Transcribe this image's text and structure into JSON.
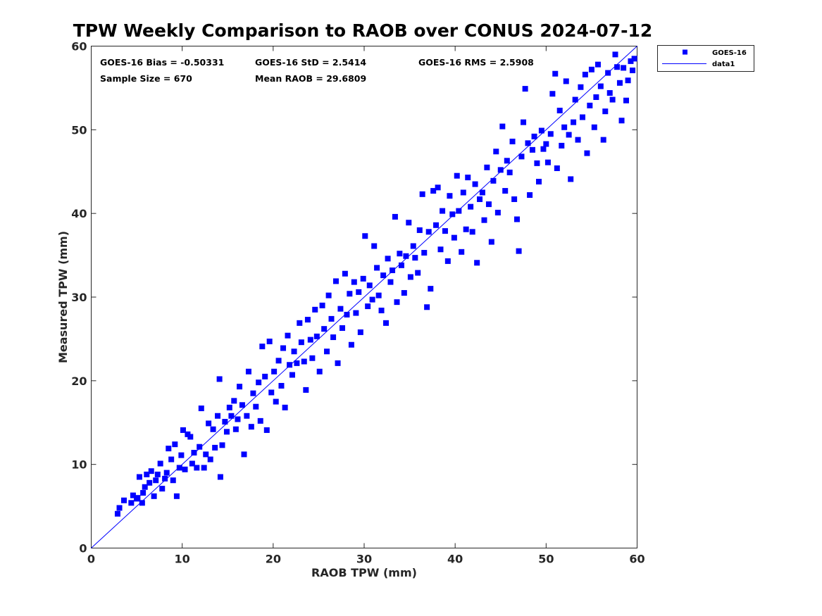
{
  "chart_data": {
    "type": "scatter",
    "title": "TPW Weekly Comparison to RAOB over CONUS 2024-07-12",
    "xlabel": "RAOB TPW (mm)",
    "ylabel": "Measured TPW (mm)",
    "xlim": [
      0,
      60
    ],
    "ylim": [
      0,
      60
    ],
    "xticks": [
      0,
      10,
      20,
      30,
      40,
      50,
      60
    ],
    "yticks": [
      0,
      10,
      20,
      30,
      40,
      50,
      60
    ],
    "grid": false,
    "legend_position": "outside-top-right",
    "stats": {
      "bias": "GOES-16 Bias = -0.50331",
      "std": "GOES-16 StD = 2.5414",
      "rms": "GOES-16 RMS = 2.5908",
      "sample": "Sample Size = 670",
      "mean": "Mean RAOB = 29.6809"
    },
    "series": [
      {
        "name": "GOES-16",
        "marker": "square",
        "color": "#0000ff",
        "note": "670 points along y≈x; a representative subset of estimated values is listed",
        "points": [
          [
            2.9,
            4.1
          ],
          [
            3.1,
            4.8
          ],
          [
            3.6,
            5.7
          ],
          [
            4.4,
            5.4
          ],
          [
            4.6,
            6.3
          ],
          [
            5.0,
            5.9
          ],
          [
            5.1,
            6.0
          ],
          [
            5.3,
            8.5
          ],
          [
            5.6,
            5.4
          ],
          [
            5.7,
            6.6
          ],
          [
            5.9,
            7.3
          ],
          [
            6.1,
            8.8
          ],
          [
            6.4,
            7.8
          ],
          [
            6.6,
            9.2
          ],
          [
            6.9,
            6.2
          ],
          [
            7.1,
            8.1
          ],
          [
            7.3,
            8.8
          ],
          [
            7.6,
            10.1
          ],
          [
            7.8,
            7.1
          ],
          [
            8.1,
            8.3
          ],
          [
            8.3,
            9.0
          ],
          [
            8.5,
            11.9
          ],
          [
            8.8,
            10.6
          ],
          [
            9.0,
            8.1
          ],
          [
            9.2,
            12.4
          ],
          [
            9.4,
            6.2
          ],
          [
            9.7,
            9.6
          ],
          [
            9.9,
            11.1
          ],
          [
            10.1,
            14.1
          ],
          [
            10.3,
            9.4
          ],
          [
            10.6,
            13.6
          ],
          [
            10.9,
            13.3
          ],
          [
            11.1,
            10.1
          ],
          [
            11.3,
            11.4
          ],
          [
            11.6,
            9.6
          ],
          [
            11.9,
            12.1
          ],
          [
            12.1,
            16.7
          ],
          [
            12.4,
            9.6
          ],
          [
            12.6,
            11.2
          ],
          [
            12.9,
            14.9
          ],
          [
            13.1,
            10.6
          ],
          [
            13.4,
            14.2
          ],
          [
            13.6,
            12.0
          ],
          [
            13.9,
            15.8
          ],
          [
            14.1,
            20.2
          ],
          [
            14.2,
            8.5
          ],
          [
            14.4,
            12.3
          ],
          [
            14.7,
            15.1
          ],
          [
            14.9,
            13.9
          ],
          [
            15.2,
            16.8
          ],
          [
            15.4,
            15.8
          ],
          [
            15.7,
            17.6
          ],
          [
            15.9,
            14.2
          ],
          [
            16.1,
            15.4
          ],
          [
            16.3,
            19.3
          ],
          [
            16.6,
            17.1
          ],
          [
            16.8,
            11.2
          ],
          [
            17.1,
            15.8
          ],
          [
            17.3,
            21.1
          ],
          [
            17.6,
            14.5
          ],
          [
            17.8,
            18.5
          ],
          [
            18.1,
            16.9
          ],
          [
            18.4,
            19.8
          ],
          [
            18.6,
            15.2
          ],
          [
            18.8,
            24.1
          ],
          [
            19.1,
            20.5
          ],
          [
            19.3,
            14.1
          ],
          [
            19.6,
            24.7
          ],
          [
            19.8,
            18.6
          ],
          [
            20.1,
            21.1
          ],
          [
            20.3,
            17.5
          ],
          [
            20.6,
            22.4
          ],
          [
            20.9,
            19.4
          ],
          [
            21.1,
            23.9
          ],
          [
            21.3,
            16.8
          ],
          [
            21.6,
            25.4
          ],
          [
            21.8,
            21.9
          ],
          [
            22.1,
            20.7
          ],
          [
            22.3,
            23.5
          ],
          [
            22.6,
            22.1
          ],
          [
            22.9,
            26.9
          ],
          [
            23.1,
            24.6
          ],
          [
            23.4,
            22.3
          ],
          [
            23.6,
            18.9
          ],
          [
            23.8,
            27.3
          ],
          [
            24.1,
            24.9
          ],
          [
            24.3,
            22.7
          ],
          [
            24.6,
            28.5
          ],
          [
            24.8,
            25.3
          ],
          [
            25.1,
            21.1
          ],
          [
            25.4,
            29.0
          ],
          [
            25.6,
            26.2
          ],
          [
            25.9,
            23.5
          ],
          [
            26.1,
            30.2
          ],
          [
            26.4,
            27.4
          ],
          [
            26.6,
            25.2
          ],
          [
            26.9,
            31.9
          ],
          [
            27.1,
            22.1
          ],
          [
            27.4,
            28.6
          ],
          [
            27.6,
            26.3
          ],
          [
            27.9,
            32.8
          ],
          [
            28.1,
            27.9
          ],
          [
            28.4,
            30.4
          ],
          [
            28.6,
            24.3
          ],
          [
            28.9,
            31.8
          ],
          [
            29.1,
            28.1
          ],
          [
            29.4,
            30.6
          ],
          [
            29.6,
            25.8
          ],
          [
            29.9,
            32.2
          ],
          [
            30.1,
            37.3
          ],
          [
            30.4,
            28.9
          ],
          [
            30.6,
            31.4
          ],
          [
            30.9,
            29.7
          ],
          [
            31.1,
            36.1
          ],
          [
            31.4,
            33.5
          ],
          [
            31.6,
            30.2
          ],
          [
            31.9,
            28.4
          ],
          [
            32.1,
            32.6
          ],
          [
            32.4,
            26.9
          ],
          [
            32.6,
            34.6
          ],
          [
            32.9,
            31.8
          ],
          [
            33.1,
            33.2
          ],
          [
            33.4,
            39.6
          ],
          [
            33.6,
            29.4
          ],
          [
            33.9,
            35.2
          ],
          [
            34.1,
            33.8
          ],
          [
            34.4,
            30.5
          ],
          [
            34.6,
            34.9
          ],
          [
            34.9,
            38.9
          ],
          [
            35.1,
            32.4
          ],
          [
            35.4,
            36.1
          ],
          [
            35.6,
            34.7
          ],
          [
            35.9,
            32.9
          ],
          [
            36.1,
            38.0
          ],
          [
            36.4,
            42.3
          ],
          [
            36.6,
            35.3
          ],
          [
            36.9,
            28.8
          ],
          [
            37.1,
            37.8
          ],
          [
            37.3,
            31.0
          ],
          [
            37.6,
            42.7
          ],
          [
            37.9,
            38.6
          ],
          [
            38.1,
            43.1
          ],
          [
            38.4,
            35.7
          ],
          [
            38.6,
            40.3
          ],
          [
            38.9,
            37.9
          ],
          [
            39.2,
            34.3
          ],
          [
            39.4,
            42.1
          ],
          [
            39.7,
            39.9
          ],
          [
            39.9,
            37.1
          ],
          [
            40.2,
            44.5
          ],
          [
            40.4,
            40.3
          ],
          [
            40.7,
            35.4
          ],
          [
            40.9,
            42.5
          ],
          [
            41.2,
            38.1
          ],
          [
            41.4,
            44.3
          ],
          [
            41.7,
            40.8
          ],
          [
            41.9,
            37.8
          ],
          [
            42.2,
            43.5
          ],
          [
            42.4,
            34.1
          ],
          [
            42.7,
            41.7
          ],
          [
            43.0,
            42.5
          ],
          [
            43.2,
            39.2
          ],
          [
            43.5,
            45.5
          ],
          [
            43.7,
            41.1
          ],
          [
            44.0,
            36.6
          ],
          [
            44.2,
            43.9
          ],
          [
            44.5,
            47.4
          ],
          [
            44.7,
            40.1
          ],
          [
            45.0,
            45.2
          ],
          [
            45.2,
            50.4
          ],
          [
            45.5,
            42.7
          ],
          [
            45.7,
            46.3
          ],
          [
            46.0,
            44.9
          ],
          [
            46.3,
            48.6
          ],
          [
            46.5,
            41.7
          ],
          [
            46.8,
            39.3
          ],
          [
            47.0,
            35.5
          ],
          [
            47.3,
            46.8
          ],
          [
            47.5,
            50.9
          ],
          [
            47.7,
            54.9
          ],
          [
            48.0,
            48.4
          ],
          [
            48.2,
            42.2
          ],
          [
            48.5,
            47.6
          ],
          [
            48.7,
            49.2
          ],
          [
            49.0,
            46.0
          ],
          [
            49.2,
            43.8
          ],
          [
            49.5,
            49.9
          ],
          [
            49.7,
            47.7
          ],
          [
            50.0,
            48.3
          ],
          [
            50.2,
            46.1
          ],
          [
            50.5,
            49.5
          ],
          [
            50.7,
            54.3
          ],
          [
            51.0,
            56.7
          ],
          [
            51.2,
            45.4
          ],
          [
            51.5,
            52.3
          ],
          [
            51.7,
            48.1
          ],
          [
            52.0,
            50.3
          ],
          [
            52.2,
            55.8
          ],
          [
            52.5,
            49.4
          ],
          [
            52.7,
            44.1
          ],
          [
            53.0,
            50.9
          ],
          [
            53.2,
            53.6
          ],
          [
            53.5,
            48.8
          ],
          [
            53.8,
            55.1
          ],
          [
            54.0,
            51.5
          ],
          [
            54.3,
            56.6
          ],
          [
            54.5,
            47.2
          ],
          [
            54.8,
            52.9
          ],
          [
            55.0,
            57.2
          ],
          [
            55.3,
            50.3
          ],
          [
            55.5,
            53.9
          ],
          [
            55.7,
            57.8
          ],
          [
            56.0,
            55.2
          ],
          [
            56.3,
            48.8
          ],
          [
            56.5,
            52.2
          ],
          [
            56.8,
            56.8
          ],
          [
            57.0,
            54.4
          ],
          [
            57.3,
            53.6
          ],
          [
            57.6,
            59.0
          ],
          [
            57.8,
            57.5
          ],
          [
            58.1,
            55.6
          ],
          [
            58.3,
            51.1
          ],
          [
            58.5,
            57.4
          ],
          [
            58.8,
            53.5
          ],
          [
            59.0,
            55.9
          ],
          [
            59.3,
            58.2
          ],
          [
            59.5,
            57.1
          ],
          [
            59.7,
            58.5
          ]
        ]
      },
      {
        "name": "data1",
        "type": "line",
        "color": "#0000ff",
        "x": [
          0,
          60
        ],
        "y": [
          0,
          60
        ]
      }
    ]
  }
}
